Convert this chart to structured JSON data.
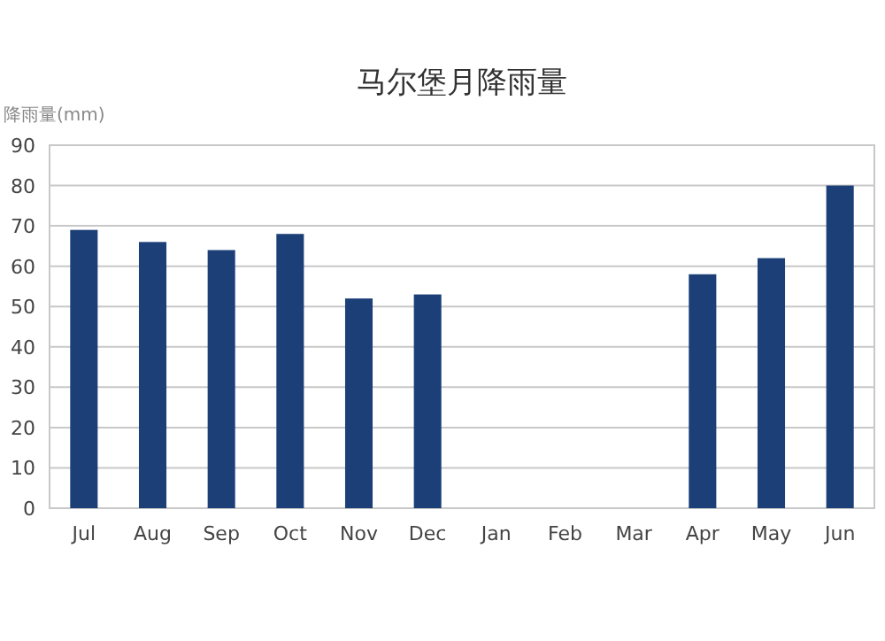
{
  "chart_data": {
    "type": "bar",
    "title": "马尔堡月降雨量",
    "ylabel": "降雨量(mm)",
    "categories": [
      "Jul",
      "Aug",
      "Sep",
      "Oct",
      "Nov",
      "Dec",
      "Jan",
      "Feb",
      "Mar",
      "Apr",
      "May",
      "Jun"
    ],
    "values": [
      69,
      66,
      64,
      68,
      52,
      53,
      null,
      null,
      null,
      58,
      62,
      80
    ],
    "color": "#1c3f78",
    "ylim": [
      0,
      90
    ],
    "yticks": [
      0,
      10,
      20,
      30,
      40,
      50,
      60,
      70,
      80,
      90
    ],
    "grid": "y"
  }
}
